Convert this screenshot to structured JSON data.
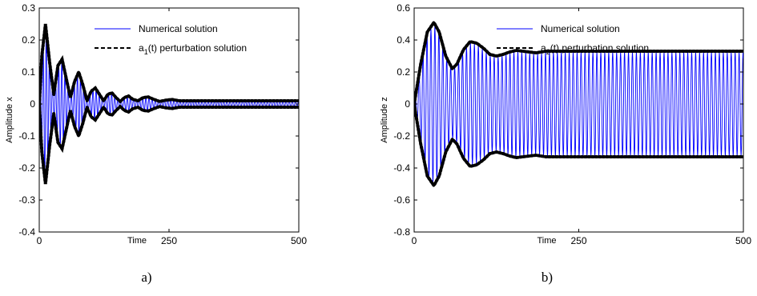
{
  "chart_data": [
    {
      "type": "line",
      "panel_label": "a)",
      "xlabel": "Time",
      "ylabel": "Amplitude x",
      "xlim": [
        0,
        500
      ],
      "ylim": [
        -0.4,
        0.3
      ],
      "x_ticks": [
        "0",
        "250",
        "500"
      ],
      "y_ticks": [
        "0.3",
        "0.2",
        "0.1",
        "0",
        "-0.1",
        "-0.2",
        "-0.3",
        "-0.4"
      ],
      "legend_position": "top-right",
      "series": [
        {
          "name": "Numerical solution",
          "color": "#0000ff",
          "style": "solid",
          "kind": "oscillation within envelope",
          "oscillation_period": 6,
          "envelope_x": [
            0,
            5,
            12,
            20,
            28,
            36,
            44,
            52,
            60,
            68,
            76,
            84,
            92,
            100,
            108,
            116,
            124,
            132,
            140,
            148,
            156,
            164,
            172,
            180,
            190,
            200,
            210,
            220,
            232,
            244,
            256,
            270,
            290,
            320,
            360,
            420,
            500
          ],
          "envelope_amplitude": [
            0.0,
            0.15,
            0.25,
            0.13,
            0.03,
            0.12,
            0.14,
            0.08,
            0.02,
            0.07,
            0.1,
            0.06,
            0.01,
            0.04,
            0.05,
            0.03,
            0.01,
            0.03,
            0.035,
            0.02,
            0.008,
            0.02,
            0.025,
            0.015,
            0.01,
            0.02,
            0.022,
            0.015,
            0.008,
            0.012,
            0.014,
            0.01,
            0.01,
            0.01,
            0.01,
            0.01,
            0.01
          ]
        },
        {
          "name": "a1(t) perturbation solution",
          "color": "#000000",
          "style": "dashed (thick dotted envelope)"
        }
      ]
    },
    {
      "type": "line",
      "panel_label": "b)",
      "xlabel": "Time",
      "ylabel": "Amplitude z",
      "xlim": [
        0,
        500
      ],
      "ylim": [
        -0.8,
        0.6
      ],
      "x_ticks": [
        "0",
        "250",
        "500"
      ],
      "y_ticks": [
        "0.6",
        "0.4",
        "0.2",
        "0",
        "-0.2",
        "-0.4",
        "-0.6",
        "-0.8"
      ],
      "legend_position": "top-right",
      "series": [
        {
          "name": "Numerical solution",
          "color": "#0000ff",
          "style": "solid",
          "kind": "oscillation within envelope",
          "oscillation_period": 6,
          "envelope_x": [
            0,
            10,
            20,
            30,
            38,
            48,
            58,
            65,
            75,
            85,
            95,
            105,
            115,
            125,
            135,
            145,
            155,
            165,
            175,
            185,
            200,
            220,
            240,
            270,
            300,
            400,
            500
          ],
          "envelope_amplitude": [
            0.0,
            0.25,
            0.45,
            0.51,
            0.45,
            0.3,
            0.22,
            0.25,
            0.34,
            0.39,
            0.38,
            0.35,
            0.31,
            0.3,
            0.31,
            0.325,
            0.335,
            0.33,
            0.325,
            0.32,
            0.33,
            0.33,
            0.33,
            0.33,
            0.33,
            0.33,
            0.33
          ]
        },
        {
          "name": "a2(t) perturbation solution",
          "color": "#000000",
          "style": "dashed (thick dotted envelope)"
        }
      ]
    }
  ]
}
